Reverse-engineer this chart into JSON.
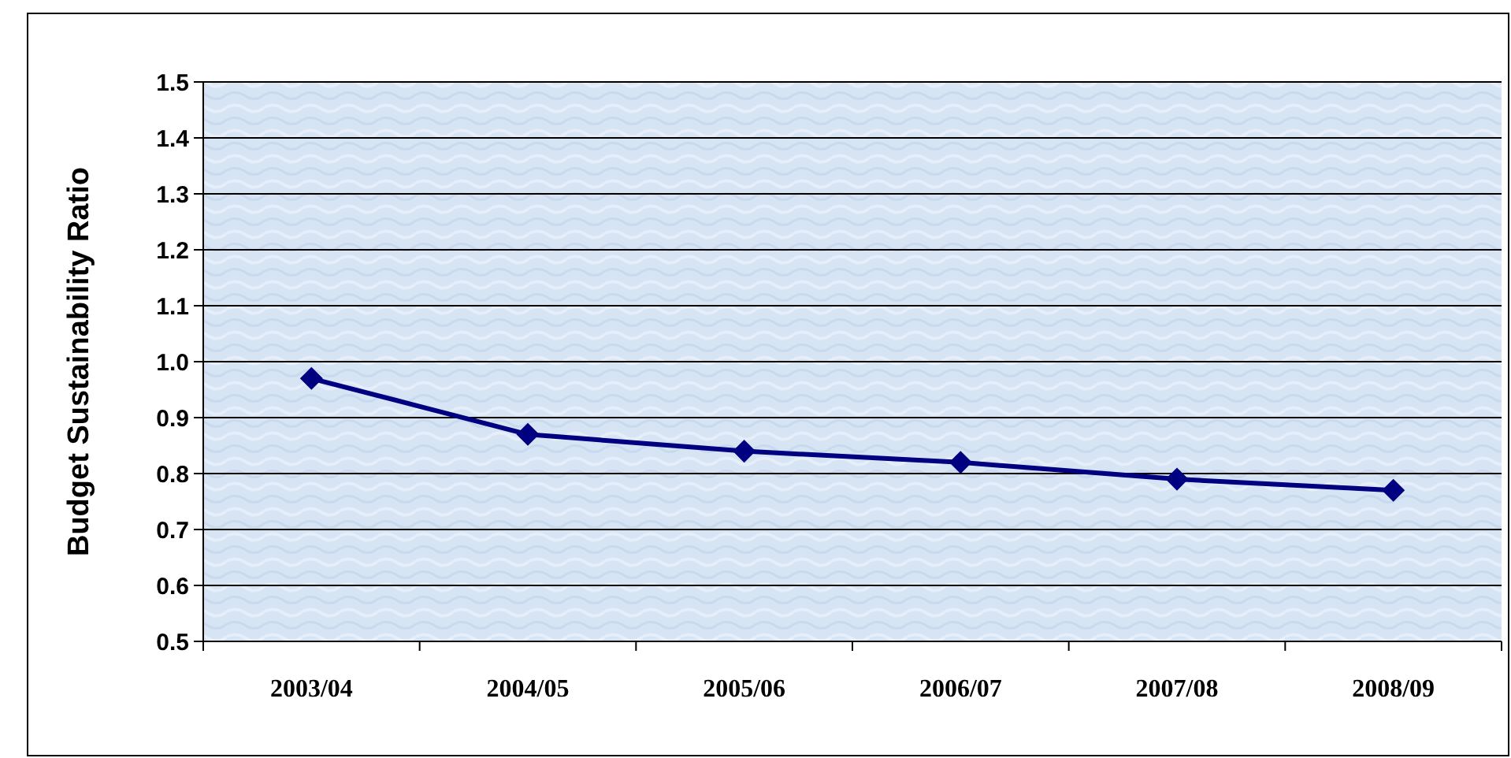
{
  "chart_data": {
    "type": "line",
    "ylabel": "Budget Sustainability Ratio",
    "categories": [
      "2003/04",
      "2004/05",
      "2005/06",
      "2006/07",
      "2007/08",
      "2008/09"
    ],
    "series": [
      {
        "color": "#000080",
        "values": [
          0.97,
          0.87,
          0.84,
          0.82,
          0.79,
          0.77
        ]
      }
    ],
    "ylim": [
      0.5,
      1.5
    ],
    "yticks": [
      {
        "value": 0.5,
        "label": "0.5"
      },
      {
        "value": 0.6,
        "label": "0.6"
      },
      {
        "value": 0.7,
        "label": "0.7"
      },
      {
        "value": 0.8,
        "label": "0.8"
      },
      {
        "value": 0.9,
        "label": "0.9"
      },
      {
        "value": 1.0,
        "label": "1.0"
      },
      {
        "value": 1.1,
        "label": "1.1"
      },
      {
        "value": 1.2,
        "label": "1.2"
      },
      {
        "value": 1.3,
        "label": "1.3"
      },
      {
        "value": 1.4,
        "label": "1.4"
      },
      {
        "value": 1.5,
        "label": "1.5"
      }
    ],
    "grid": "y",
    "marker": "diamond",
    "line_style": "solid"
  }
}
